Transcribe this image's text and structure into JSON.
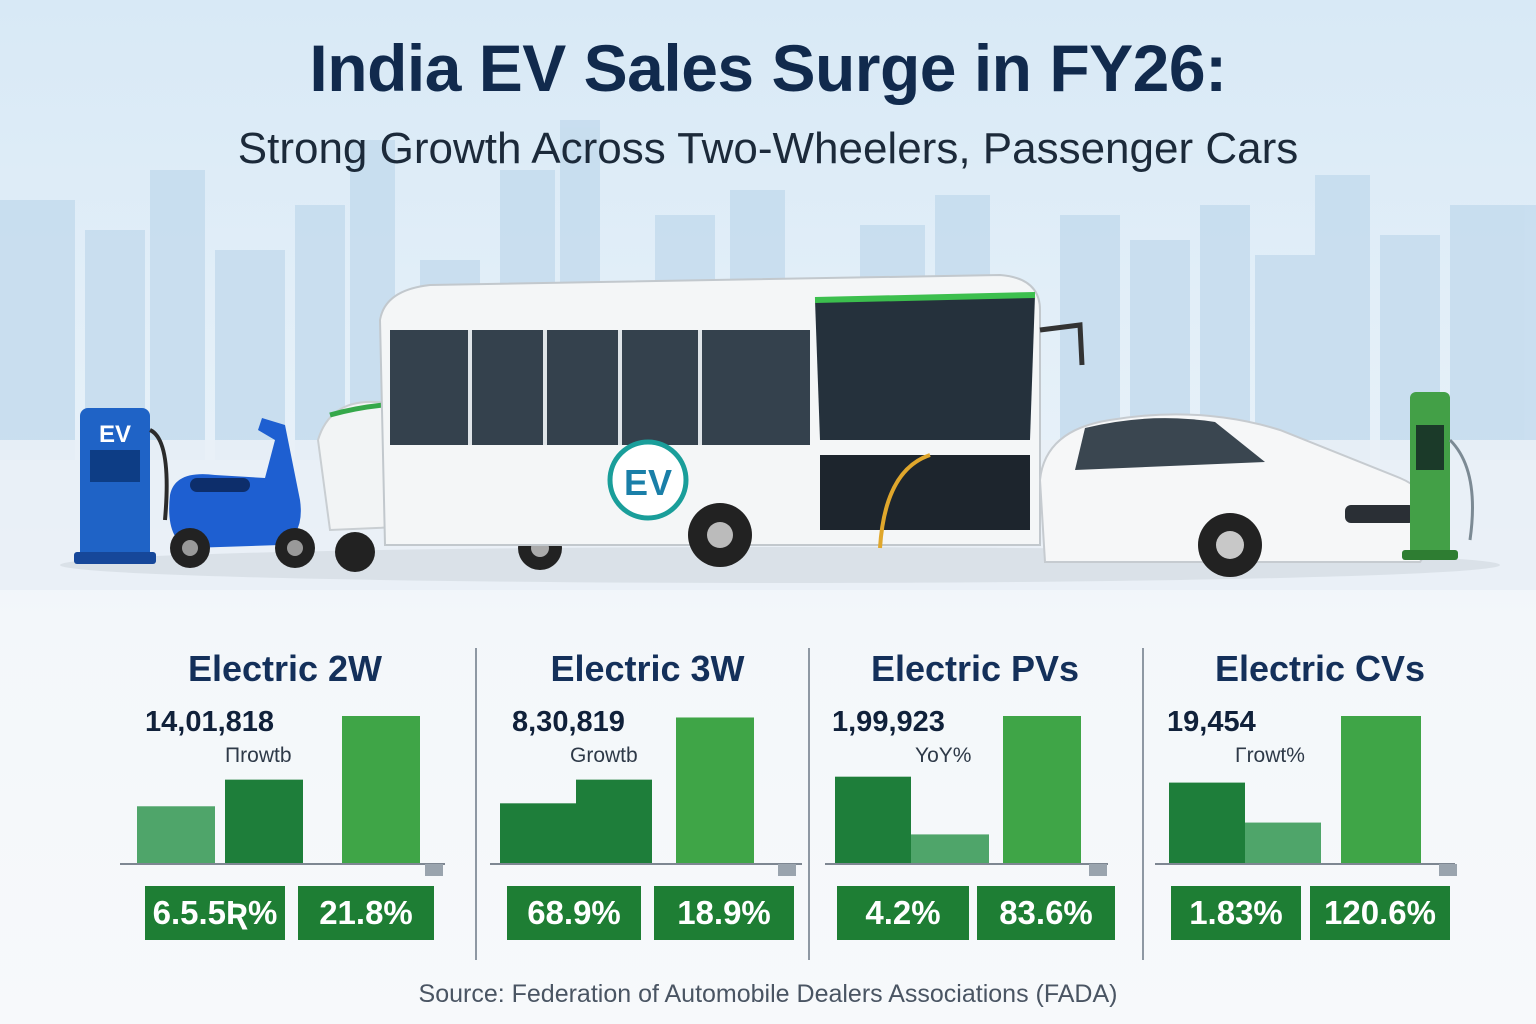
{
  "header": {
    "title": "India EV Sales Surge in FY26:",
    "subtitle": "Strong Growth Across Two-Wheelers, Passenger Cars"
  },
  "scene": {
    "charger_left_label": "EV",
    "bus_logo": "EV"
  },
  "colors": {
    "dark_green": "#1e7e3a",
    "light_green": "#3fa547",
    "pale_green": "#4fa56a",
    "badge_green": "#1e7e34",
    "title_navy": "#112a4d"
  },
  "chart_data": [
    {
      "type": "bar",
      "title": "Electric 2W",
      "value_label": "14,01,818",
      "metric_label": "Πrowtb",
      "relative_bar_heights": [
        0.39,
        0.57,
        1.0
      ],
      "badges": [
        "6.5.5Ʀ%",
        "21.8%"
      ]
    },
    {
      "type": "bar",
      "title": "Electric 3W",
      "value_label": "8,30,819",
      "metric_label": "Growtb",
      "relative_bar_heights": [
        0.41,
        0.57,
        0.99
      ],
      "badges": [
        "68.9%",
        "18.9%"
      ]
    },
    {
      "type": "bar",
      "title": "Electric PVs",
      "value_label": "1,99,923",
      "metric_label": "YoY%",
      "relative_bar_heights": [
        0.59,
        0.2,
        1.0
      ],
      "badges": [
        "4.2%",
        "83.6%"
      ]
    },
    {
      "type": "bar",
      "title": "Electric CVs",
      "value_label": "19,454",
      "metric_label": "Γrowt%",
      "relative_bar_heights": [
        0.55,
        0.28,
        1.0
      ],
      "badges": [
        "1.83%",
        "120.6%"
      ]
    }
  ],
  "footer": {
    "source": "Source: Federation of Automobile Dealers Associations (FADA)"
  }
}
